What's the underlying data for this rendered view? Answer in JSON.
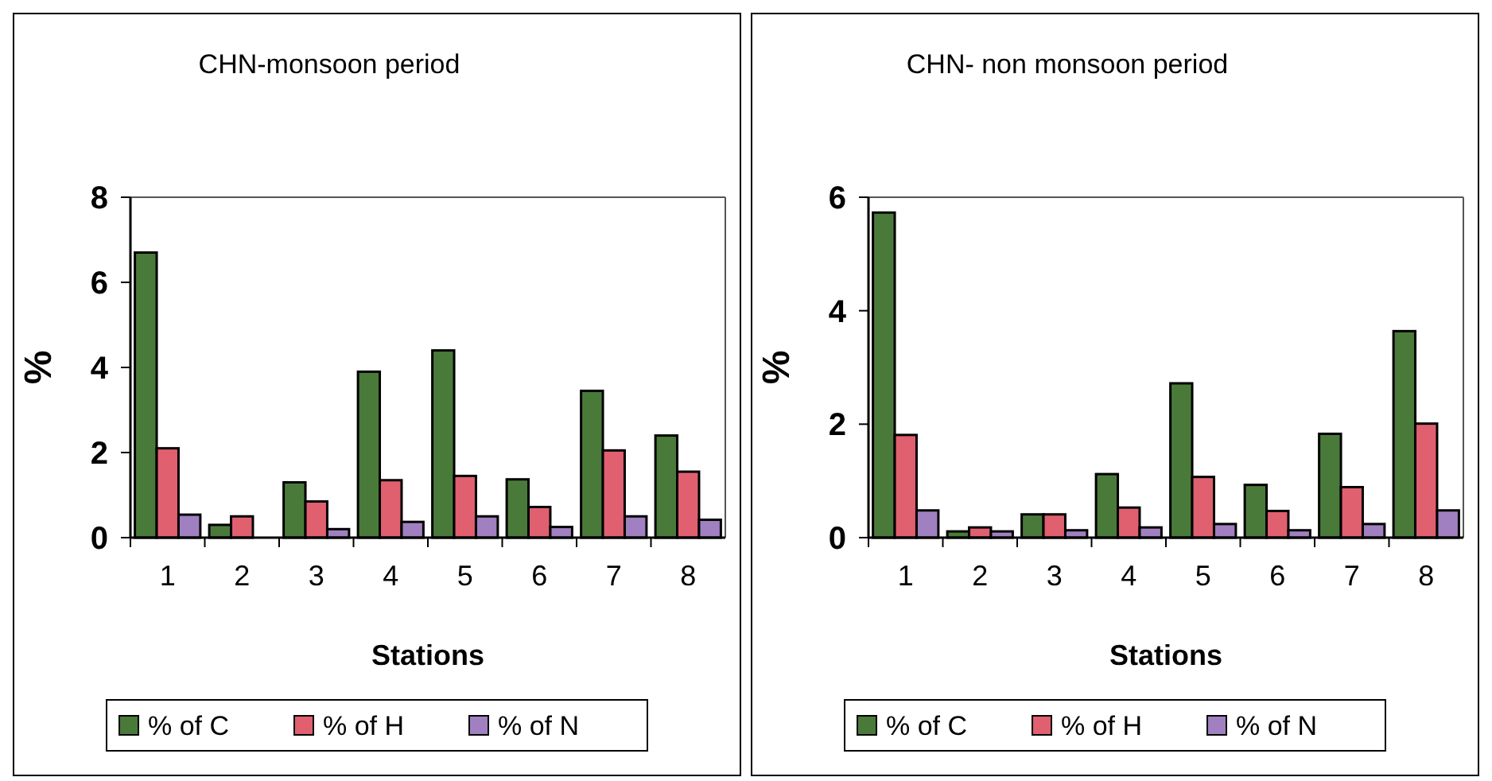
{
  "chart_data": [
    {
      "type": "bar",
      "title": "CHN-monsoon period",
      "xlabel": "Stations",
      "ylabel": "%",
      "categories": [
        "1",
        "2",
        "3",
        "4",
        "5",
        "6",
        "7",
        "8"
      ],
      "ylim": [
        0,
        8
      ],
      "yticks": [
        0,
        2,
        4,
        6,
        8
      ],
      "grid": false,
      "legend": "bottom",
      "series": [
        {
          "name": "% of C",
          "color": "#4a7a3a",
          "values": [
            6.7,
            0.3,
            1.3,
            3.9,
            4.4,
            1.37,
            3.45,
            2.4
          ]
        },
        {
          "name": "% of H",
          "color": "#e06070",
          "values": [
            2.1,
            0.5,
            0.85,
            1.35,
            1.45,
            0.72,
            2.05,
            1.55
          ]
        },
        {
          "name": "% of N",
          "color": "#a080c0",
          "values": [
            0.54,
            null,
            0.2,
            0.37,
            0.5,
            0.25,
            0.5,
            0.42
          ]
        }
      ]
    },
    {
      "type": "bar",
      "title": "CHN- non monsoon period",
      "xlabel": "Stations",
      "ylabel": "%",
      "categories": [
        "1",
        "2",
        "3",
        "4",
        "5",
        "6",
        "7",
        "8"
      ],
      "ylim": [
        0,
        6
      ],
      "yticks": [
        0,
        2,
        4,
        6
      ],
      "grid": false,
      "legend": "bottom",
      "series": [
        {
          "name": "% of C",
          "color": "#4a7a3a",
          "values": [
            5.73,
            0.11,
            0.41,
            1.12,
            2.72,
            0.93,
            1.83,
            3.64
          ]
        },
        {
          "name": "% of H",
          "color": "#e06070",
          "values": [
            1.81,
            0.18,
            0.41,
            0.53,
            1.07,
            0.47,
            0.89,
            2.01
          ]
        },
        {
          "name": "% of N",
          "color": "#a080c0",
          "values": [
            0.48,
            0.11,
            0.13,
            0.18,
            0.24,
            0.13,
            0.24,
            0.48
          ]
        }
      ]
    }
  ]
}
